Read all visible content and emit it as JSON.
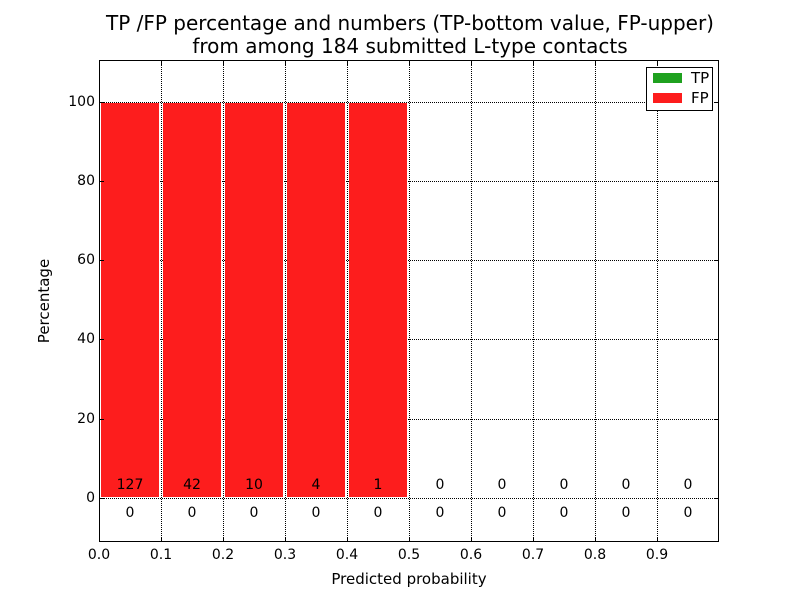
{
  "chart_data": {
    "type": "bar",
    "stacked": true,
    "title": "TP /FP percentage and numbers (TP-bottom value, FP-upper)",
    "subtitle": "from among 184 submitted L-type contacts",
    "xlabel": "Predicted probability",
    "ylabel": "Percentage",
    "total_submitted_contacts": 184,
    "bin_width": 0.1,
    "categories": [
      "0.0-0.1",
      "0.1-0.2",
      "0.2-0.3",
      "0.3-0.4",
      "0.4-0.5",
      "0.5-0.6",
      "0.6-0.7",
      "0.7-0.8",
      "0.8-0.9",
      "0.9-1.0"
    ],
    "series": [
      {
        "name": "TP",
        "color": "#1fa11f",
        "annotation_row": "bottom",
        "percentages": [
          0,
          0,
          0,
          0,
          0,
          0,
          0,
          0,
          0,
          0
        ],
        "counts": [
          0,
          0,
          0,
          0,
          0,
          0,
          0,
          0,
          0,
          0
        ]
      },
      {
        "name": "FP",
        "color": "#fd1d1d",
        "annotation_row": "upper",
        "percentages": [
          100,
          100,
          100,
          100,
          100,
          0,
          0,
          0,
          0,
          0
        ],
        "counts": [
          127,
          42,
          10,
          4,
          1,
          0,
          0,
          0,
          0,
          0
        ]
      }
    ],
    "xticks": [
      "0.0",
      "0.1",
      "0.2",
      "0.3",
      "0.4",
      "0.5",
      "0.6",
      "0.7",
      "0.8",
      "0.9"
    ],
    "yticks": [
      0,
      20,
      40,
      60,
      80,
      100
    ],
    "xlim": [
      0.0,
      1.0
    ],
    "ylim": [
      -11,
      110
    ],
    "grid": {
      "style": "dotted",
      "color": "#000000"
    },
    "legend": {
      "position": "upper-right",
      "entries": [
        {
          "label": "TP",
          "color": "#1fa11f"
        },
        {
          "label": "FP",
          "color": "#fd1d1d"
        }
      ]
    }
  }
}
